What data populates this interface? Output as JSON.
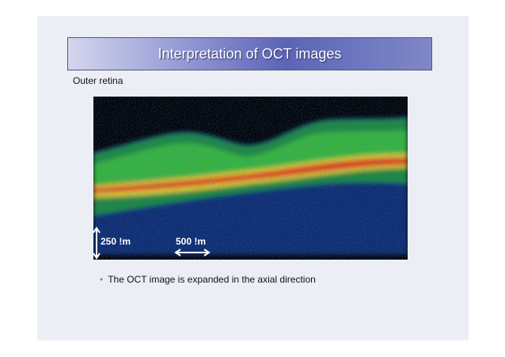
{
  "header": {
    "title": "Interpretation of OCT images"
  },
  "section": "Outer retina",
  "figure": {
    "scale_vertical": "250 !m",
    "scale_horizontal": "500 !m"
  },
  "bullets": [
    "The OCT image is expanded in the axial direction"
  ]
}
